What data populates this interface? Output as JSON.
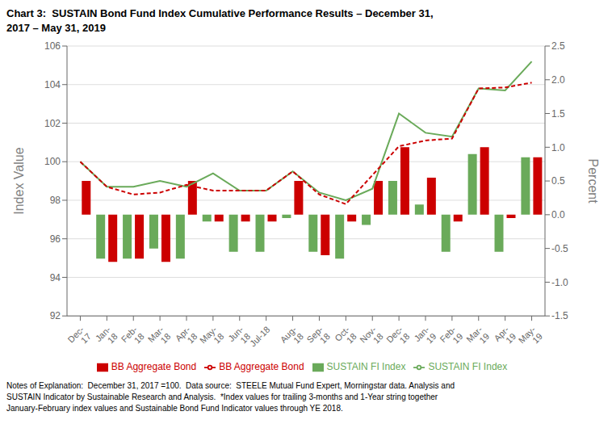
{
  "chart_data": {
    "type": "bar",
    "title": "Chart 3:  SUSTAIN Bond Fund Index Cumulative Performance Results – December 31,\n2017 – May 31, 2019",
    "ylabel": "Index Value",
    "y2label": "Percent",
    "annotations": [
      "Notes of Explanation:  December 31, 2017 =100.  Data source:  STEELE Mutual Fund Expert, Morningstar data. Analysis and\nSUSTAIN Indicator by Sustainable Research and Analysis.  *Index values for trailing 3-months and 1-Year string together\nJanuary-February index values and Sustainable Bond Fund Indicator values through YE 2018."
    ],
    "categories": [
      "Dec-\n17",
      "Jan-\n18",
      "Feb-\n18",
      "Mar-\n18",
      "Apr-\n18",
      "May-\n18",
      "Jun-\n18",
      "Jul-18",
      "Aug-\n18",
      "Sep-\n18",
      "Oct-\n18",
      "Nov-\n18",
      "Dec-\n18",
      "Jan-\n19",
      "Feb-\n19",
      "Mar-\n19",
      "Apr-\n19",
      "May-\n19"
    ],
    "series": [
      {
        "name": "SUSTAIN FI Index",
        "type": "bar",
        "axis": "y2",
        "color": "#6aaa5a",
        "values": [
          0.0,
          -0.65,
          -0.65,
          -0.5,
          -0.65,
          -0.1,
          -0.55,
          -0.55,
          -0.05,
          -0.55,
          -0.65,
          -0.15,
          0.5,
          0.15,
          -0.55,
          0.9,
          -0.55,
          0.85
        ]
      },
      {
        "name": "BB Aggregate Bond",
        "type": "bar",
        "axis": "y2",
        "color": "#cc0000",
        "values": [
          0.5,
          -0.7,
          -0.65,
          -0.7,
          0.5,
          -0.1,
          -0.1,
          -0.1,
          0.5,
          -0.6,
          -0.1,
          0.5,
          1.0,
          0.55,
          -0.1,
          1.0,
          -0.05,
          0.85
        ]
      },
      {
        "name": "SUSTAIN FI Index",
        "type": "line",
        "color": "#6aaa5a",
        "line_style": "solid",
        "values": [
          100.0,
          98.7,
          98.7,
          99.0,
          98.7,
          99.4,
          98.5,
          98.5,
          99.5,
          98.4,
          98.0,
          98.6,
          102.5,
          101.5,
          101.3,
          103.8,
          103.7,
          105.2
        ]
      },
      {
        "name": "BB Aggregate Bond",
        "type": "line",
        "color": "#cc0000",
        "line_style": "dashed",
        "values": [
          100.0,
          98.7,
          98.3,
          98.4,
          98.8,
          98.5,
          98.5,
          98.5,
          99.5,
          98.3,
          97.8,
          99.3,
          100.8,
          101.1,
          101.2,
          103.8,
          103.85,
          104.1
        ]
      }
    ],
    "ylim": [
      92,
      106
    ],
    "yticks": [
      92,
      94,
      96,
      98,
      100,
      102,
      104,
      106
    ],
    "y2lim": [
      -1.5,
      2.5
    ],
    "y2ticks": [
      -1.5,
      {
        "value": -1,
        "label": "-1.0"
      },
      -0.5,
      {
        "value": 0,
        "label": "0.0"
      },
      0.5,
      {
        "value": 1,
        "label": "1.0"
      },
      1.5,
      {
        "value": 2,
        "label": "2.0"
      },
      2.5
    ],
    "grid": true,
    "legend": "bottom"
  }
}
